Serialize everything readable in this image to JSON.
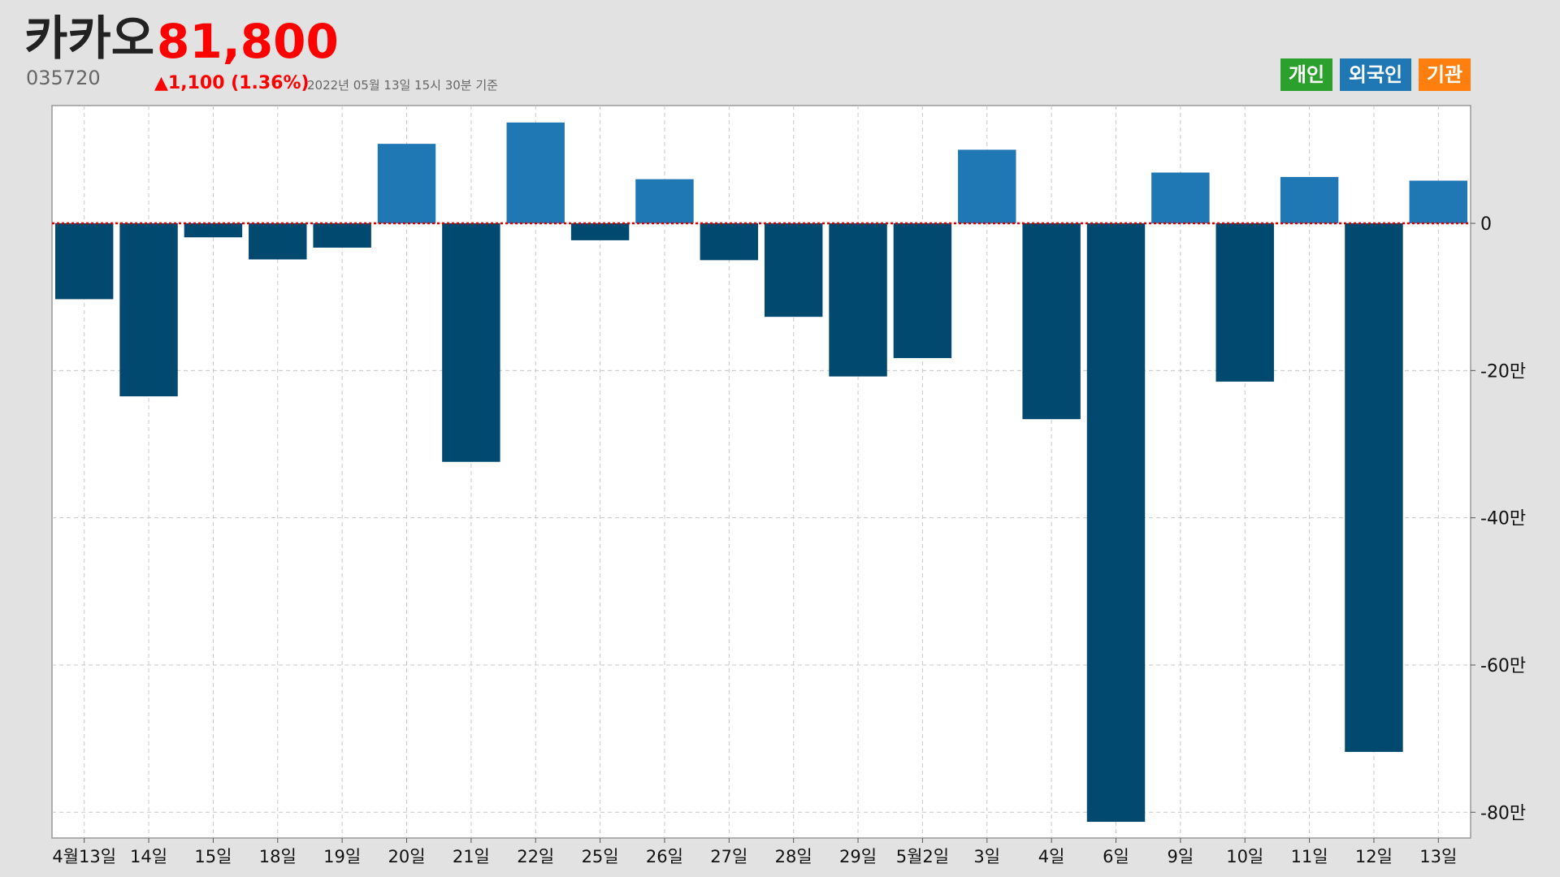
{
  "header": {
    "company": "카카오",
    "price": "81,800",
    "code": "035720",
    "change": "▲1,100 (1.36%)",
    "timestamp": "2022년 05월 13일 15시 30분 기준"
  },
  "legend": [
    {
      "label": "개인",
      "color": "#2ca02c"
    },
    {
      "label": "외국인",
      "color": "#1f77b4"
    },
    {
      "label": "기관",
      "color": "#ff7f0e"
    }
  ],
  "colors": {
    "positive": "#1f77b4",
    "negative": "#02496f",
    "zero_line": "#e00000",
    "grid": "#c8c8c8",
    "plot_bg": "#ffffff",
    "price": "#ff0000"
  },
  "chart_data": {
    "type": "bar",
    "series": [
      {
        "name": "외국인"
      }
    ],
    "categories": [
      "4월13일",
      "14일",
      "15일",
      "18일",
      "19일",
      "20일",
      "21일",
      "22일",
      "25일",
      "26일",
      "27일",
      "28일",
      "29일",
      "5월2일",
      "3일",
      "4일",
      "6일",
      "9일",
      "10일",
      "11일",
      "12일",
      "13일"
    ],
    "values": [
      -10.3,
      -23.5,
      -1.9,
      -4.9,
      -3.3,
      10.8,
      -32.4,
      13.7,
      -2.3,
      6.0,
      -5.0,
      -12.7,
      -20.8,
      -18.3,
      10.0,
      -26.6,
      -81.3,
      6.9,
      -21.5,
      6.3,
      -71.8,
      5.8
    ],
    "unit": "만",
    "yticks": [
      0,
      -20,
      -40,
      -60,
      -80
    ],
    "ytick_labels": [
      "0",
      "-20만",
      "-40만",
      "-60만",
      "-80만"
    ],
    "ylim": [
      -83.5,
      16
    ],
    "grid": true,
    "zero_line": "dotted red",
    "xlabel": "",
    "ylabel": ""
  }
}
